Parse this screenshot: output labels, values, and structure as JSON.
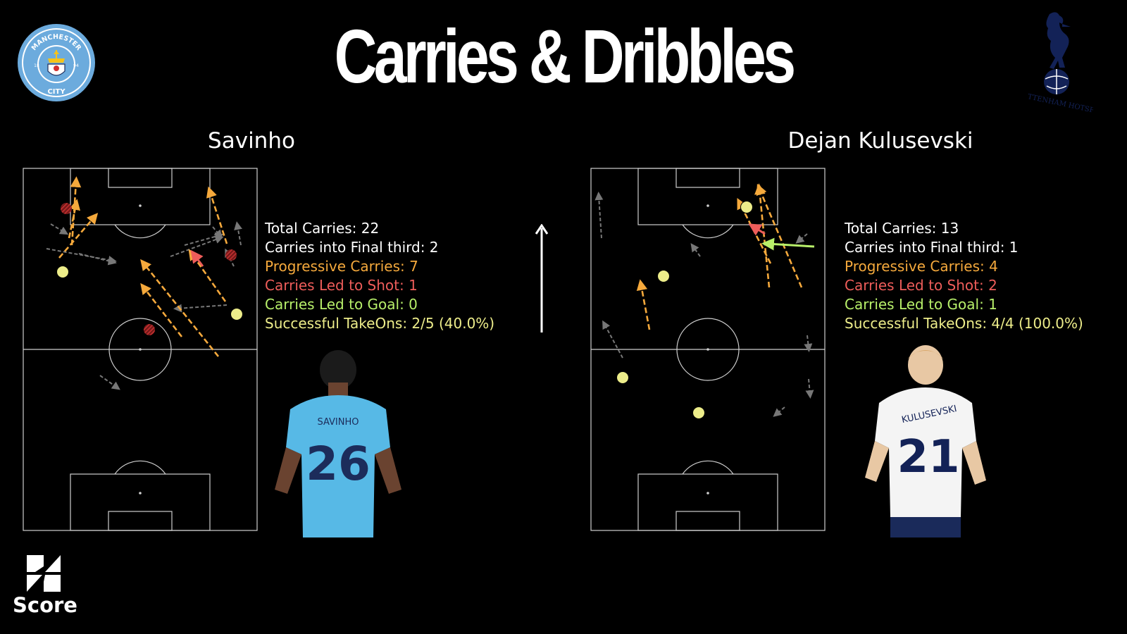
{
  "title": "Carries & Dribbles",
  "colors": {
    "background": "#000000",
    "progressive": "#f5a93c",
    "shot": "#ee5d5a",
    "goal": "#b8f06a",
    "takeon": "#eded8a",
    "man_city_blue": "#6cabdd",
    "spurs_navy": "#132257"
  },
  "logos": {
    "left": {
      "icon": "manchester-city-crest-icon",
      "text_top": "MANCHESTER",
      "text_bottom": "CITY",
      "year_left": "18",
      "year_right": "94"
    },
    "right": {
      "icon": "tottenham-hotspur-crest-icon",
      "text": "TOTTENHAM HOTSPUR"
    },
    "brand": {
      "icon": "score-logo-icon",
      "text": "Score"
    }
  },
  "direction_arrow": {
    "icon": "arrow-up-icon"
  },
  "players": {
    "left": {
      "name": "Savinho",
      "shirt_name": "SAVINHO",
      "shirt_number": "26",
      "stats": {
        "total_carries": "Total Carries: 22",
        "final_third": "Carries into Final third: 2",
        "progressive": "Progressive Carries: 7",
        "led_to_shot": "Carries Led to Shot: 1",
        "led_to_goal": "Carries Led to Goal: 0",
        "takeons": "Successful TakeOns: 2/5 (40.0%)"
      }
    },
    "right": {
      "name": "Dejan Kulusevski",
      "shirt_name": "KULUSEVSKI",
      "shirt_number": "21",
      "stats": {
        "total_carries": "Total Carries: 13",
        "final_third": "Carries into Final third: 1",
        "progressive": "Progressive Carries: 4",
        "led_to_shot": "Carries Led to Shot: 2",
        "led_to_goal": "Carries Led to Goal: 1",
        "takeons": "Successful TakeOns: 4/4 (100.0%)"
      }
    }
  }
}
